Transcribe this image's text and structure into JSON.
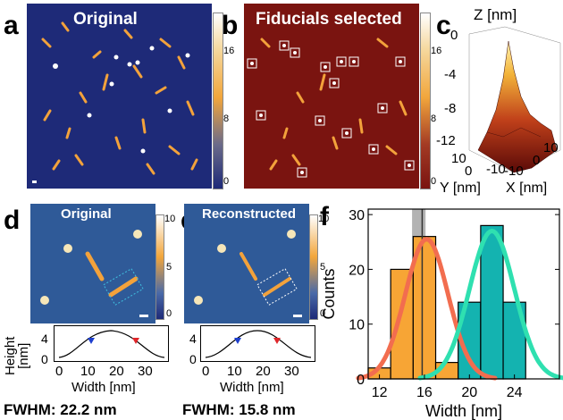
{
  "panels": {
    "a": {
      "letter": "a",
      "title": "Original",
      "colorbar_ticks": [
        "16",
        "8",
        "0"
      ]
    },
    "b": {
      "letter": "b",
      "title": "Fiducials selected",
      "colorbar_ticks": [
        "16",
        "8",
        "0"
      ]
    },
    "c": {
      "letter": "c",
      "z_label": "Z [nm]",
      "z_ticks": [
        "0",
        "-4",
        "-8",
        "-12"
      ],
      "y_ticks": [
        "10",
        "0",
        "-10"
      ],
      "x_ticks": [
        "10",
        "0",
        "-10"
      ],
      "y_label": "Y [nm]",
      "x_label": "X [nm]"
    },
    "d": {
      "letter": "d",
      "title": "Original",
      "colorbar_ticks": [
        "10",
        "5",
        "0"
      ],
      "profile": {
        "ylabel": "Height\n[nm]",
        "y_ticks": [
          "4",
          "0"
        ],
        "x_ticks": [
          "0",
          "10",
          "20",
          "30"
        ],
        "xlabel": "Width [nm]"
      },
      "fwhm": "FWHM: 22.2 nm"
    },
    "e": {
      "letter": "e",
      "title": "Reconstructed",
      "colorbar_ticks": [
        "10",
        "5",
        "0"
      ],
      "profile": {
        "ylabel": "Height\n[nm]",
        "y_ticks": [
          "4",
          "0"
        ],
        "x_ticks": [
          "0",
          "10",
          "20",
          "30"
        ],
        "xlabel": "Width [nm]"
      },
      "fwhm": "FWHM: 15.8 nm"
    },
    "f": {
      "letter": "f"
    }
  },
  "chart_data": {
    "type": "bar",
    "xlabel": "Width [nm]",
    "ylabel": "Counts",
    "xlim": [
      11,
      28
    ],
    "ylim": [
      0,
      31
    ],
    "x_ticks": [
      "12",
      "16",
      "20",
      "24"
    ],
    "y_ticks": [
      "0",
      "10",
      "20",
      "30"
    ],
    "bin_width": 2,
    "series": [
      {
        "color": "#f7a535",
        "bins": [
          {
            "x": 12,
            "value": 2
          },
          {
            "x": 14,
            "value": 20
          },
          {
            "x": 16,
            "value": 26
          },
          {
            "x": 18,
            "value": 3
          }
        ],
        "fit": {
          "mean": 16.2,
          "sigma": 1.9,
          "amp": 25.5,
          "color": "#f26d4f"
        }
      },
      {
        "color": "#14b3b0",
        "bins": [
          {
            "x": 20,
            "value": 14
          },
          {
            "x": 22,
            "value": 28
          },
          {
            "x": 24,
            "value": 14
          }
        ],
        "fit": {
          "mean": 22.0,
          "sigma": 2.0,
          "amp": 27.0,
          "color": "#2fe0b0"
        }
      }
    ],
    "vertical_band": {
      "x": 15.5,
      "half_width": 0.6
    },
    "vertical_line": {
      "x": 15.8
    }
  }
}
